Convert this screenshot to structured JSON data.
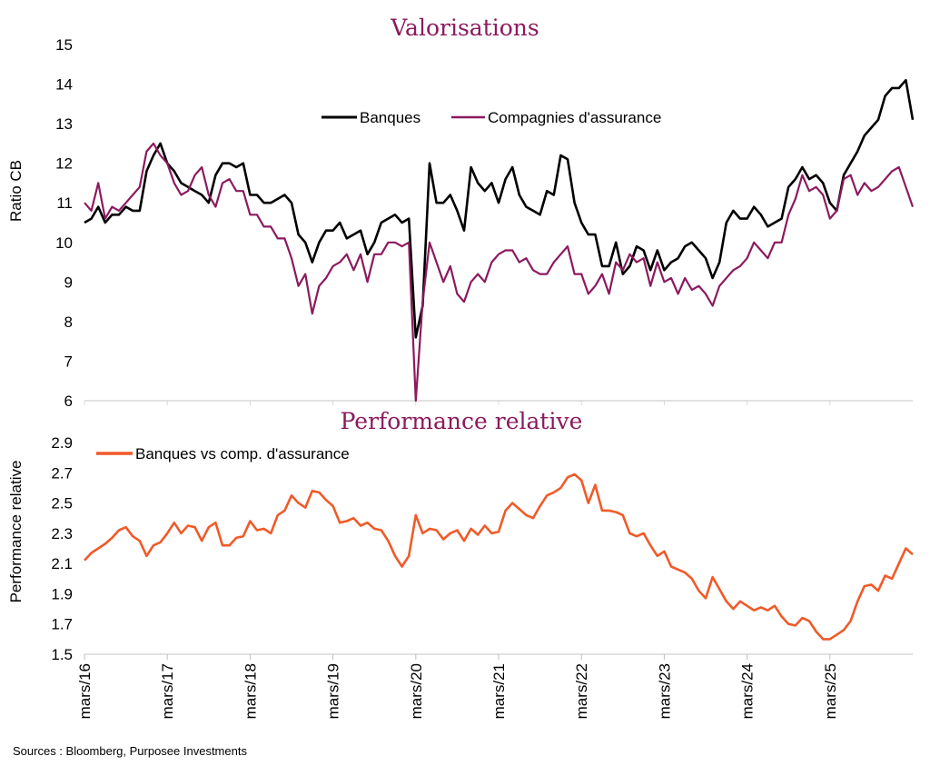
{
  "chart_data": [
    {
      "type": "line",
      "title": "Valorisations",
      "xlabel": "",
      "ylabel": "Ratio CB",
      "ylim": [
        6,
        15
      ],
      "yticks": [
        "6",
        "7",
        "8",
        "9",
        "10",
        "11",
        "12",
        "13",
        "14",
        "15"
      ],
      "x_start": "2016-03",
      "x_frequency": "monthly",
      "grid": false,
      "legend": "top-center",
      "series": [
        {
          "name": "Banques",
          "color": "#000000",
          "values": [
            10.5,
            10.6,
            10.9,
            10.5,
            10.7,
            10.7,
            10.9,
            10.8,
            10.8,
            11.8,
            12.2,
            12.5,
            12.0,
            11.8,
            11.5,
            11.4,
            11.3,
            11.2,
            11.0,
            11.7,
            12.0,
            12.0,
            11.9,
            12.0,
            11.2,
            11.2,
            11.0,
            11.0,
            11.1,
            11.2,
            11.0,
            10.2,
            10.0,
            9.5,
            10.0,
            10.3,
            10.3,
            10.5,
            10.1,
            10.2,
            10.3,
            9.7,
            10.0,
            10.5,
            10.6,
            10.7,
            10.5,
            10.6,
            7.6,
            8.4,
            12.0,
            11.0,
            11.0,
            11.2,
            10.8,
            10.3,
            11.9,
            11.5,
            11.3,
            11.5,
            11.0,
            11.6,
            11.9,
            11.2,
            10.9,
            10.8,
            10.7,
            11.3,
            11.2,
            12.2,
            12.1,
            11.0,
            10.5,
            10.2,
            10.2,
            9.4,
            9.4,
            10.0,
            9.2,
            9.4,
            9.9,
            9.8,
            9.3,
            9.8,
            9.3,
            9.5,
            9.6,
            9.9,
            10.0,
            9.8,
            9.6,
            9.1,
            9.5,
            10.5,
            10.8,
            10.6,
            10.6,
            10.9,
            10.7,
            10.4,
            10.5,
            10.6,
            11.4,
            11.6,
            11.9,
            11.6,
            11.7,
            11.5,
            11.0,
            10.8,
            11.7,
            12.0,
            12.3,
            12.7,
            12.9,
            13.1,
            13.7,
            13.9,
            13.9,
            14.1,
            13.1
          ]
        },
        {
          "name": "Compagnies d'assurance",
          "color": "#8B1A5E",
          "values": [
            11.0,
            10.8,
            11.5,
            10.6,
            10.9,
            10.8,
            11.0,
            11.2,
            11.4,
            12.3,
            12.5,
            12.2,
            12.0,
            11.5,
            11.2,
            11.3,
            11.7,
            11.9,
            11.2,
            10.9,
            11.5,
            11.6,
            11.3,
            11.3,
            10.7,
            10.7,
            10.4,
            10.4,
            10.1,
            10.1,
            9.6,
            8.9,
            9.2,
            8.2,
            8.9,
            9.1,
            9.4,
            9.5,
            9.7,
            9.3,
            9.7,
            9.0,
            9.7,
            9.7,
            10.0,
            10.0,
            9.9,
            10.0,
            6.0,
            8.5,
            10.0,
            9.5,
            9.0,
            9.4,
            8.7,
            8.5,
            9.0,
            9.2,
            9.0,
            9.5,
            9.7,
            9.8,
            9.8,
            9.5,
            9.6,
            9.3,
            9.2,
            9.2,
            9.5,
            9.7,
            9.9,
            9.2,
            9.2,
            8.7,
            8.9,
            9.2,
            8.7,
            9.5,
            9.3,
            9.7,
            9.5,
            9.6,
            8.9,
            9.5,
            9.0,
            9.1,
            8.7,
            9.1,
            8.8,
            8.9,
            8.7,
            8.4,
            8.9,
            9.1,
            9.3,
            9.4,
            9.6,
            10.0,
            9.8,
            9.6,
            10.0,
            10.0,
            10.7,
            11.1,
            11.7,
            11.3,
            11.4,
            11.2,
            10.6,
            10.8,
            11.6,
            11.7,
            11.2,
            11.5,
            11.3,
            11.4,
            11.6,
            11.8,
            11.9,
            11.4,
            10.9
          ]
        }
      ]
    },
    {
      "type": "line",
      "title": "Performance relative",
      "xlabel": "",
      "ylabel": "Performance relative",
      "ylim": [
        1.5,
        2.9
      ],
      "yticks": [
        "1.5",
        "1.7",
        "1.9",
        "2.1",
        "2.3",
        "2.5",
        "2.7",
        "2.9"
      ],
      "xticks": [
        "mars/16",
        "mars/17",
        "mars/18",
        "mars/19",
        "mars/20",
        "mars/21",
        "mars/22",
        "mars/23",
        "mars/24",
        "mars/25"
      ],
      "x_start": "2016-03",
      "x_frequency": "monthly",
      "grid": false,
      "legend": "top-left",
      "series": [
        {
          "name": "Banques vs comp. d'assurance",
          "color": "#F05A28",
          "values": [
            2.12,
            2.17,
            2.2,
            2.23,
            2.27,
            2.32,
            2.34,
            2.28,
            2.25,
            2.15,
            2.22,
            2.24,
            2.3,
            2.37,
            2.3,
            2.35,
            2.34,
            2.25,
            2.34,
            2.37,
            2.22,
            2.22,
            2.27,
            2.28,
            2.38,
            2.32,
            2.33,
            2.3,
            2.42,
            2.45,
            2.55,
            2.5,
            2.47,
            2.58,
            2.57,
            2.52,
            2.48,
            2.37,
            2.38,
            2.4,
            2.35,
            2.37,
            2.33,
            2.32,
            2.25,
            2.15,
            2.08,
            2.15,
            2.42,
            2.3,
            2.33,
            2.32,
            2.26,
            2.3,
            2.32,
            2.25,
            2.33,
            2.29,
            2.35,
            2.3,
            2.31,
            2.45,
            2.5,
            2.46,
            2.42,
            2.4,
            2.48,
            2.55,
            2.57,
            2.6,
            2.67,
            2.69,
            2.65,
            2.5,
            2.62,
            2.45,
            2.45,
            2.44,
            2.42,
            2.3,
            2.28,
            2.3,
            2.22,
            2.15,
            2.18,
            2.08,
            2.06,
            2.04,
            2.0,
            1.92,
            1.87,
            2.01,
            1.93,
            1.85,
            1.8,
            1.85,
            1.82,
            1.79,
            1.81,
            1.79,
            1.82,
            1.75,
            1.7,
            1.69,
            1.74,
            1.72,
            1.65,
            1.6,
            1.6,
            1.63,
            1.66,
            1.72,
            1.85,
            1.95,
            1.96,
            1.92,
            2.02,
            2.0,
            2.1,
            2.2,
            2.16
          ]
        }
      ]
    }
  ],
  "source": "Sources : Bloomberg, Purposee Investments"
}
